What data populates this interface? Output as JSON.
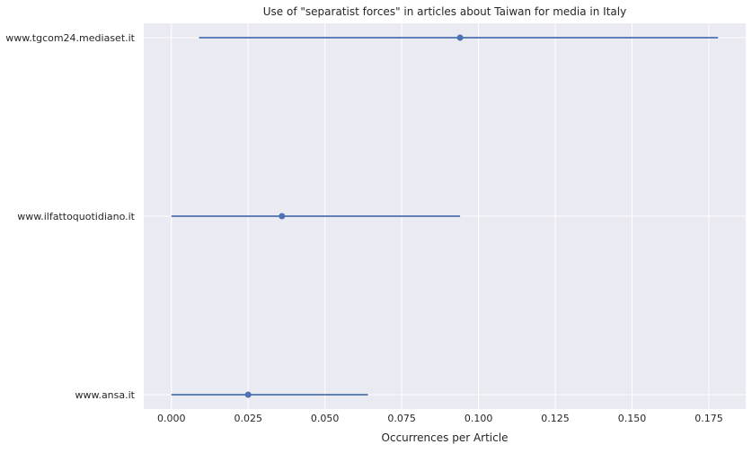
{
  "chart_data": {
    "type": "scatter",
    "title": "Use of \"separatist forces\" in articles about Taiwan for media in Italy",
    "xlabel": "Occurrences per Article",
    "ylabel": "",
    "xlim": [
      -0.009,
      0.187
    ],
    "x_ticks": [
      0.0,
      0.025,
      0.05,
      0.075,
      0.1,
      0.125,
      0.15,
      0.175
    ],
    "x_tick_labels": [
      "0.000",
      "0.025",
      "0.050",
      "0.075",
      "0.100",
      "0.125",
      "0.150",
      "0.175"
    ],
    "categories": [
      "www.tgcom24.mediaset.it",
      "www.ilfattoquotidiano.it",
      "www.ansa.it"
    ],
    "points": [
      {
        "category": "www.tgcom24.mediaset.it",
        "value": 0.094,
        "ci_low": 0.009,
        "ci_high": 0.178
      },
      {
        "category": "www.ilfattoquotidiano.it",
        "value": 0.036,
        "ci_low": 0.0,
        "ci_high": 0.094
      },
      {
        "category": "www.ansa.it",
        "value": 0.025,
        "ci_low": 0.0,
        "ci_high": 0.064
      }
    ],
    "grid": true,
    "colors": {
      "background": "#eaeaf2",
      "grid": "#ffffff",
      "series": "#4c72b0"
    }
  }
}
